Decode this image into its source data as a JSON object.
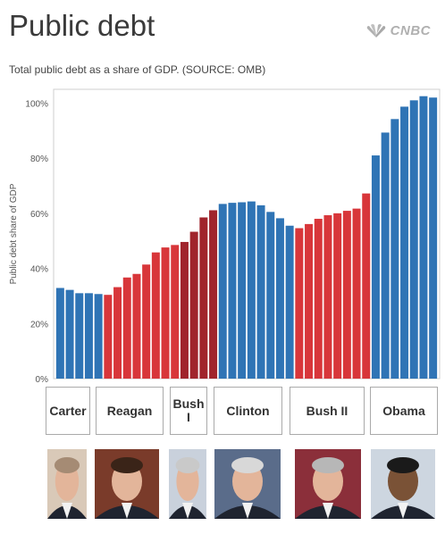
{
  "header": {
    "title": "Public debt",
    "logo_text": "CNBC",
    "subtitle": "Total public debt as a share of GDP. (SOURCE: OMB)"
  },
  "colors": {
    "democrat": "#2f74b5",
    "republican": "#d8363a",
    "bush1": "#a0242c",
    "axis_text": "#555555"
  },
  "presidents": [
    {
      "name": "Carter",
      "party": "D"
    },
    {
      "name": "Reagan",
      "party": "R"
    },
    {
      "name": "Bush I",
      "party": "R"
    },
    {
      "name": "Clinton",
      "party": "D"
    },
    {
      "name": "Bush II",
      "party": "R"
    },
    {
      "name": "Obama",
      "party": "D"
    }
  ],
  "chart_data": {
    "type": "bar",
    "title": "Public debt",
    "subtitle": "Total public debt as a share of GDP. (SOURCE: OMB)",
    "ylabel": "Public debt share of GDP",
    "xlabel": "",
    "ylim": [
      0,
      105
    ],
    "yticks": [
      "0%",
      "20%",
      "40%",
      "60%",
      "80%",
      "100%"
    ],
    "ytick_values": [
      0,
      20,
      40,
      60,
      80,
      100
    ],
    "grid": false,
    "values": [
      32.9,
      32.2,
      31.0,
      31.0,
      30.7,
      30.4,
      33.2,
      36.7,
      38.0,
      41.4,
      45.8,
      47.6,
      48.5,
      49.6,
      53.3,
      58.5,
      61.1,
      63.4,
      63.8,
      64.0,
      64.3,
      62.9,
      60.5,
      58.2,
      55.5,
      54.6,
      56.1,
      58.0,
      59.3,
      60.0,
      60.9,
      61.7,
      67.2,
      81.0,
      89.3,
      94.2,
      98.7,
      101.0,
      102.5,
      102.0
    ],
    "groups": [
      {
        "president": "Carter",
        "start": 0,
        "end": 4
      },
      {
        "president": "Reagan",
        "start": 5,
        "end": 12
      },
      {
        "president": "Bush I",
        "start": 13,
        "end": 16
      },
      {
        "president": "Clinton",
        "start": 17,
        "end": 24
      },
      {
        "president": "Bush II",
        "start": 25,
        "end": 32
      },
      {
        "president": "Obama",
        "start": 33,
        "end": 39
      }
    ]
  }
}
